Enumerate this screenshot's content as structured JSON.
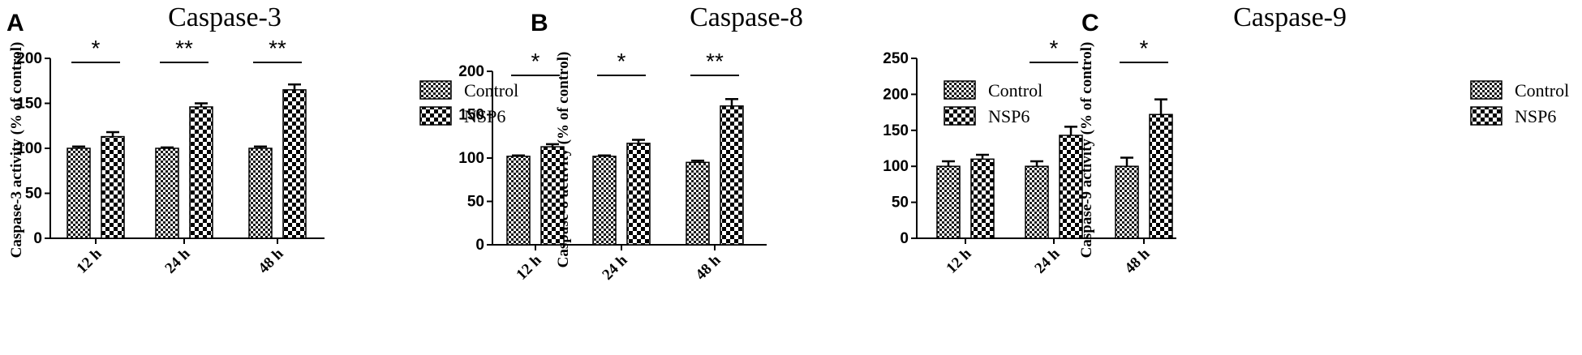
{
  "chart_data": [
    {
      "type": "bar",
      "panel": "A",
      "title": "Caspase-3",
      "ylabel": "Caspase-3 activity (% of control)",
      "xlabel": "",
      "categories": [
        "12 h",
        "24 h",
        "48 h"
      ],
      "ylim": [
        0,
        200
      ],
      "yticks": [
        0,
        50,
        100,
        150,
        200
      ],
      "series": [
        {
          "name": "Control",
          "values": [
            100,
            100,
            100
          ],
          "errors": [
            2,
            1,
            2
          ],
          "pattern": "fine-check"
        },
        {
          "name": "NSP6",
          "values": [
            113,
            146,
            165
          ],
          "errors": [
            5,
            4,
            6
          ],
          "pattern": "coarse-check"
        }
      ],
      "significance": [
        "*",
        "**",
        "**"
      ],
      "legend_position": "right",
      "grid": false
    },
    {
      "type": "bar",
      "panel": "B",
      "title": "Caspase-8",
      "ylabel": "Caspase-8 activity (% of control)",
      "xlabel": "",
      "categories": [
        "12 h",
        "24 h",
        "48 h"
      ],
      "ylim": [
        0,
        200
      ],
      "yticks": [
        0,
        50,
        100,
        150,
        200
      ],
      "series": [
        {
          "name": "Control",
          "values": [
            102,
            102,
            95
          ],
          "errors": [
            1,
            1,
            2
          ],
          "pattern": "fine-check"
        },
        {
          "name": "NSP6",
          "values": [
            113,
            117,
            160
          ],
          "errors": [
            3,
            4,
            8
          ],
          "pattern": "coarse-check"
        }
      ],
      "significance": [
        "*",
        "*",
        "**"
      ],
      "legend_position": "right",
      "grid": false
    },
    {
      "type": "bar",
      "panel": "C",
      "title": "Caspase-9",
      "ylabel": "Caspase-9 activity (% of control)",
      "xlabel": "",
      "categories": [
        "12 h",
        "24 h",
        "48 h"
      ],
      "ylim": [
        0,
        250
      ],
      "yticks": [
        0,
        50,
        100,
        150,
        200,
        250
      ],
      "series": [
        {
          "name": "Control",
          "values": [
            100,
            100,
            100
          ],
          "errors": [
            7,
            7,
            12
          ],
          "pattern": "fine-check"
        },
        {
          "name": "NSP6",
          "values": [
            110,
            143,
            172
          ],
          "errors": [
            6,
            12,
            21
          ],
          "pattern": "coarse-check"
        }
      ],
      "significance": [
        "",
        "*",
        "*"
      ],
      "legend_position": "right",
      "grid": false
    }
  ]
}
